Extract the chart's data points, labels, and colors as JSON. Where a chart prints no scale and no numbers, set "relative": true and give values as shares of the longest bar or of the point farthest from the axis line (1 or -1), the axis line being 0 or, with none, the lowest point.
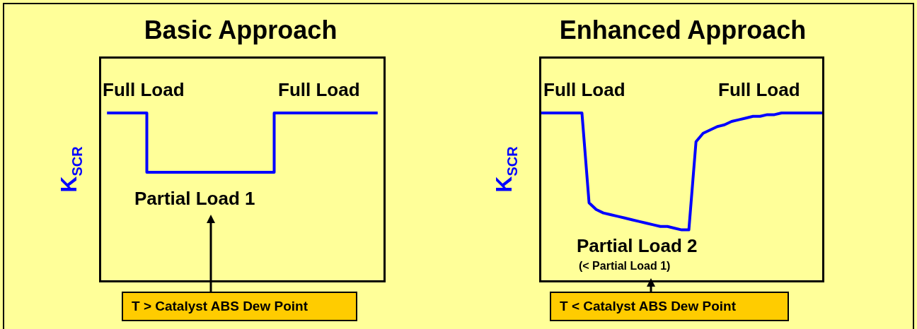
{
  "chart_data": [
    {
      "type": "step",
      "title": "Basic Approach",
      "ylabel": "K$_{SCR}$",
      "relative": true,
      "marker": "none",
      "color": "#0000ff",
      "categories": [
        null,
        null,
        null,
        null,
        null,
        null,
        null,
        null,
        null,
        null,
        null,
        null,
        null,
        null,
        null,
        null,
        null,
        null
      ],
      "values": [
        1,
        1,
        1,
        0.65,
        0.65,
        0.65,
        0.65,
        0.65,
        0.65,
        0.65,
        0.65,
        1,
        1,
        1,
        1,
        1,
        1,
        1
      ],
      "annotations": [
        "Full Load",
        "Full Load",
        "Partial Load 1",
        "T > Catalyst ABS Dew Point"
      ]
    },
    {
      "type": "line",
      "title": "Enhanced Approach",
      "ylabel": "K$_{SCR}$",
      "relative": true,
      "marker": "none",
      "color": "#0000ff",
      "categories": [
        null,
        null,
        null,
        null,
        null,
        null,
        null,
        null,
        null,
        null,
        null,
        null,
        null,
        null,
        null,
        null,
        null,
        null,
        null,
        null,
        null,
        null,
        null,
        null,
        null,
        null,
        null,
        null,
        null,
        null,
        null,
        null,
        null,
        null,
        null,
        null,
        null,
        null,
        null,
        null,
        null
      ],
      "values": [
        1,
        1,
        1,
        1,
        1,
        1,
        1,
        0.47,
        0.43,
        0.41,
        0.4,
        0.39,
        0.38,
        0.37,
        0.36,
        0.35,
        0.34,
        0.33,
        0.33,
        0.32,
        0.31,
        0.31,
        0.83,
        0.88,
        0.9,
        0.92,
        0.93,
        0.95,
        0.96,
        0.97,
        0.98,
        0.98,
        0.99,
        0.99,
        1,
        1,
        1,
        1,
        1,
        1,
        1
      ],
      "annotations": [
        "Full Load",
        "Full Load",
        "Partial Load 2",
        "(< Partial Load 1)",
        "T < Catalyst ABS Dew Point"
      ]
    }
  ]
}
